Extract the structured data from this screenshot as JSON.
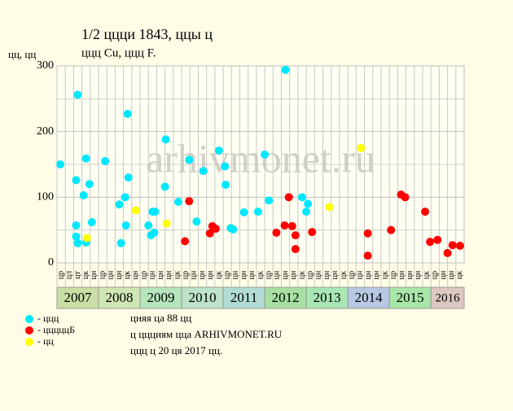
{
  "chart_data": {
    "type": "scatter",
    "title": "1/2 ццци 1843, ццы ц",
    "subtitle": "ццц Cu, ццц F.",
    "y_label": "цц, цц",
    "watermark": "arhivmonet.ru",
    "xlim": [
      0,
      49
    ],
    "ylim": [
      0,
      300
    ],
    "yticks": [
      0,
      100,
      200,
      300
    ],
    "ygrid": [
      50,
      150,
      250
    ],
    "grid": true,
    "columns": [
      "цр",
      "цл",
      "цт",
      "цк",
      "цн",
      "цр",
      "цн",
      "цн",
      "цк",
      "цн",
      "цр",
      "цн",
      "цн",
      "цн",
      "цк",
      "цр",
      "цн",
      "цн",
      "цн",
      "цк",
      "цр",
      "цн",
      "цн",
      "цн",
      "цк",
      "цр",
      "цн",
      "цн",
      "цн",
      "цк",
      "цр",
      "цн",
      "цн",
      "цн",
      "цк",
      "цр",
      "цн",
      "цн",
      "цн",
      "цк",
      "цр",
      "цн",
      "цн",
      "цн",
      "цк",
      "цр",
      "цн",
      "цн",
      "цк"
    ],
    "x_groups": [
      {
        "label": "2007",
        "start": 0,
        "end": 5,
        "color": "#c9dfa6"
      },
      {
        "label": "2008",
        "start": 5,
        "end": 10,
        "color": "#cfe6b4"
      },
      {
        "label": "2009",
        "start": 10,
        "end": 15,
        "color": "#b6e6bc"
      },
      {
        "label": "2010",
        "start": 15,
        "end": 20,
        "color": "#bde3c8"
      },
      {
        "label": "2011",
        "start": 20,
        "end": 25,
        "color": "#b2ddd4"
      },
      {
        "label": "2012",
        "start": 25,
        "end": 30,
        "color": "#a8e0a4"
      },
      {
        "label": "2013",
        "start": 30,
        "end": 35,
        "color": "#a8e6b4"
      },
      {
        "label": "2014",
        "start": 35,
        "end": 40,
        "color": "#b8c8e2"
      },
      {
        "label": "2015",
        "start": 40,
        "end": 45,
        "color": "#a8e6a8"
      },
      {
        "label": "2016",
        "start": 45,
        "end": 49,
        "color": "#dcc8c0"
      }
    ],
    "series": [
      {
        "name": "- ццц",
        "color": "#00e8ff",
        "x": [
          0.4,
          2.3,
          2.5,
          2.3,
          2.3,
          2.5,
          3.2,
          3.5,
          3.9,
          3.5,
          4.2,
          5.8,
          7.5,
          7.7,
          8.2,
          8.3,
          8.5,
          8.6,
          11.0,
          11.3,
          11.5,
          11.8,
          11.7,
          13.1,
          13.0,
          14.6,
          15.9,
          16.8,
          17.6,
          19.5,
          20.2,
          20.3,
          20.9,
          21.2,
          22.5,
          24.2,
          25.0,
          25.5,
          27.5,
          29.5,
          30.2,
          30.0
        ],
        "values": [
          150,
          126,
          256,
          57,
          40,
          30,
          103,
          159,
          120,
          31,
          62,
          155,
          89,
          30,
          100,
          57,
          227,
          130,
          57,
          42,
          78,
          78,
          46,
          188,
          116,
          93,
          157,
          63,
          140,
          171,
          147,
          119,
          53,
          51,
          77,
          78,
          165,
          95,
          294,
          100,
          90,
          78
        ]
      },
      {
        "name": "- цццццБ",
        "color": "#ff0000",
        "x": [
          15.4,
          15.9,
          18.4,
          18.7,
          19.1,
          26.4,
          27.4,
          27.9,
          28.3,
          28.7,
          28.7,
          30.7,
          37.4,
          37.4,
          40.2,
          41.4,
          41.9,
          44.3,
          44.9,
          45.8,
          47.0,
          47.6,
          48.5
        ],
        "values": [
          33,
          94,
          45,
          56,
          52,
          46,
          57,
          100,
          56,
          42,
          21,
          47,
          45,
          11,
          50,
          104,
          100,
          78,
          32,
          35,
          15,
          27,
          26
        ]
      },
      {
        "name": "- цц",
        "color": "#ffff00",
        "x": [
          3.6,
          9.5,
          13.2,
          32.8,
          36.6
        ],
        "values": [
          38,
          80,
          60,
          85,
          175
        ]
      }
    ],
    "notes": [
      "цняя ца 88 цц",
      "ц ццциям цца ARHIVMONET.RU",
      "ццц ц 20 ця 2017 цц."
    ]
  }
}
